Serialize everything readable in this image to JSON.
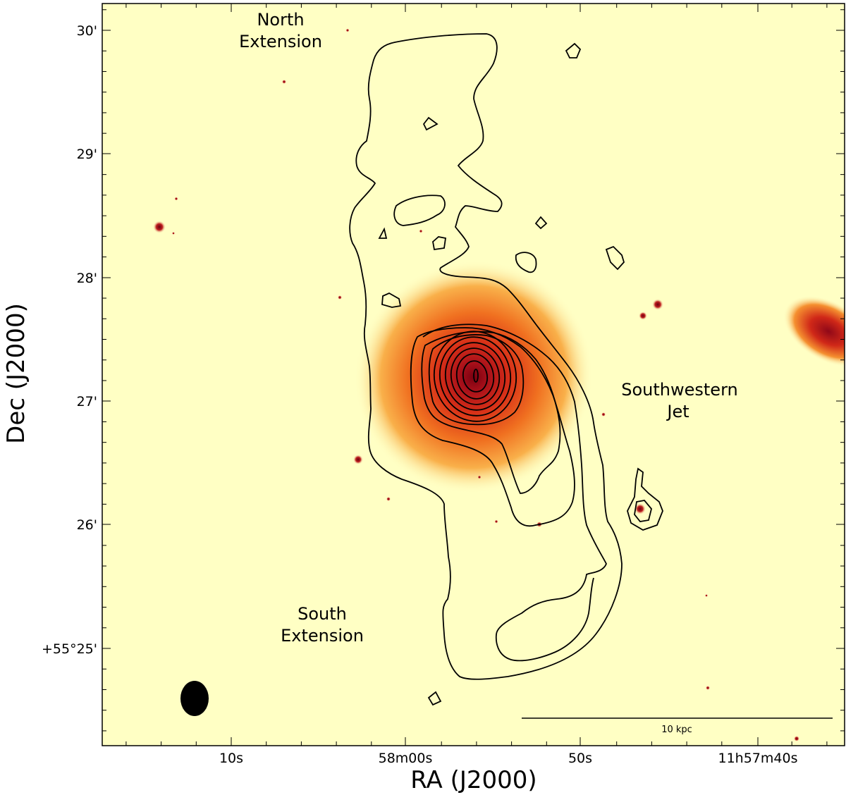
{
  "figure": {
    "xlabel": "RA (J2000)",
    "ylabel": "Dec (J2000)",
    "x_ticks": [
      "10s",
      "58m00s",
      "50s",
      "11h57m40s"
    ],
    "y_ticks": [
      "30'",
      "29'",
      "28'",
      "27'",
      "26'",
      "+55°25'"
    ],
    "annotations": {
      "north_line1": "North",
      "north_line2": "Extension",
      "sw_line1": "Southwestern",
      "sw_line2": "Jet",
      "south_line1": "South",
      "south_line2": "Extension"
    },
    "scale_bar_label": "10 kpc",
    "colors": {
      "background": "#ffffc4",
      "galaxy_core": "#7a0010",
      "galaxy_mid": "#d83018",
      "galaxy_halo": "#f79a2c",
      "contour": "#000000"
    }
  }
}
